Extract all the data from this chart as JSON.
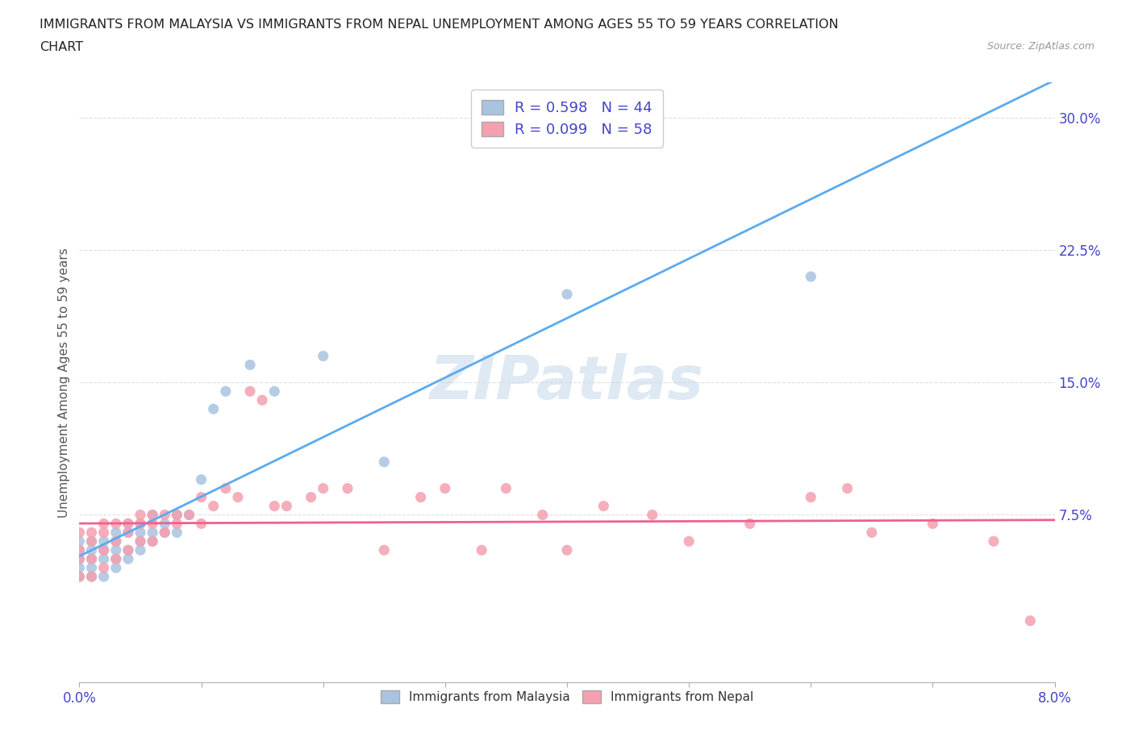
{
  "title_line1": "IMMIGRANTS FROM MALAYSIA VS IMMIGRANTS FROM NEPAL UNEMPLOYMENT AMONG AGES 55 TO 59 YEARS CORRELATION",
  "title_line2": "CHART",
  "source": "Source: ZipAtlas.com",
  "ylabel": "Unemployment Among Ages 55 to 59 years",
  "xlim": [
    0.0,
    0.08
  ],
  "ylim": [
    -0.02,
    0.32
  ],
  "xticks": [
    0.0,
    0.01,
    0.02,
    0.03,
    0.04,
    0.05,
    0.06,
    0.07,
    0.08
  ],
  "xtick_labels": [
    "0.0%",
    "",
    "",
    "",
    "",
    "",
    "",
    "",
    "8.0%"
  ],
  "yticks_right": [
    0.075,
    0.15,
    0.225,
    0.3
  ],
  "ytick_labels_right": [
    "7.5%",
    "15.0%",
    "22.5%",
    "30.0%"
  ],
  "malaysia_color": "#a8c4e0",
  "nepal_color": "#f4a0b0",
  "malaysia_line_color": "#5aabf0",
  "nepal_line_color": "#f06090",
  "malaysia_R": 0.598,
  "malaysia_N": 44,
  "nepal_R": 0.099,
  "nepal_N": 58,
  "tick_color": "#4444cc",
  "background_color": "#ffffff",
  "watermark": "ZIPatlas",
  "grid_color": "#e0e0e0",
  "malaysia_scatter_x": [
    0.0,
    0.0,
    0.0,
    0.0,
    0.0,
    0.001,
    0.001,
    0.001,
    0.001,
    0.001,
    0.002,
    0.002,
    0.002,
    0.002,
    0.003,
    0.003,
    0.003,
    0.003,
    0.003,
    0.004,
    0.004,
    0.004,
    0.004,
    0.005,
    0.005,
    0.005,
    0.005,
    0.006,
    0.006,
    0.006,
    0.007,
    0.007,
    0.008,
    0.008,
    0.009,
    0.01,
    0.011,
    0.012,
    0.014,
    0.016,
    0.02,
    0.025,
    0.04,
    0.06
  ],
  "malaysia_scatter_y": [
    0.04,
    0.045,
    0.05,
    0.055,
    0.06,
    0.04,
    0.045,
    0.05,
    0.055,
    0.06,
    0.04,
    0.05,
    0.055,
    0.06,
    0.045,
    0.05,
    0.055,
    0.06,
    0.065,
    0.05,
    0.055,
    0.065,
    0.07,
    0.055,
    0.06,
    0.065,
    0.07,
    0.06,
    0.065,
    0.075,
    0.065,
    0.07,
    0.065,
    0.075,
    0.075,
    0.095,
    0.135,
    0.145,
    0.16,
    0.145,
    0.165,
    0.105,
    0.2,
    0.21
  ],
  "nepal_scatter_x": [
    0.0,
    0.0,
    0.0,
    0.0,
    0.001,
    0.001,
    0.001,
    0.001,
    0.002,
    0.002,
    0.002,
    0.002,
    0.003,
    0.003,
    0.003,
    0.004,
    0.004,
    0.004,
    0.005,
    0.005,
    0.005,
    0.006,
    0.006,
    0.006,
    0.007,
    0.007,
    0.008,
    0.008,
    0.009,
    0.01,
    0.01,
    0.011,
    0.012,
    0.013,
    0.014,
    0.015,
    0.016,
    0.017,
    0.019,
    0.02,
    0.022,
    0.025,
    0.028,
    0.03,
    0.033,
    0.035,
    0.038,
    0.04,
    0.043,
    0.047,
    0.05,
    0.055,
    0.06,
    0.063,
    0.065,
    0.07,
    0.075,
    0.078
  ],
  "nepal_scatter_y": [
    0.04,
    0.05,
    0.055,
    0.065,
    0.04,
    0.05,
    0.06,
    0.065,
    0.045,
    0.055,
    0.065,
    0.07,
    0.05,
    0.06,
    0.07,
    0.055,
    0.065,
    0.07,
    0.06,
    0.07,
    0.075,
    0.06,
    0.07,
    0.075,
    0.065,
    0.075,
    0.07,
    0.075,
    0.075,
    0.07,
    0.085,
    0.08,
    0.09,
    0.085,
    0.145,
    0.14,
    0.08,
    0.08,
    0.085,
    0.09,
    0.09,
    0.055,
    0.085,
    0.09,
    0.055,
    0.09,
    0.075,
    0.055,
    0.08,
    0.075,
    0.06,
    0.07,
    0.085,
    0.09,
    0.065,
    0.07,
    0.06,
    0.015
  ]
}
